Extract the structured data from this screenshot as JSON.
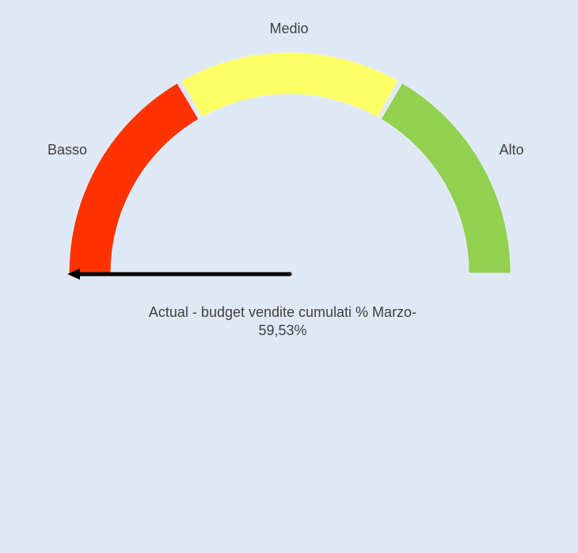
{
  "chart_data": {
    "type": "gauge",
    "bands": [
      {
        "label": "Basso",
        "color": "#ff3300"
      },
      {
        "label": "Medio",
        "color": "#ffff66"
      },
      {
        "label": "Alto",
        "color": "#92d050"
      }
    ],
    "value_percent": -59.53,
    "caption_line1": "Actual - budget vendite cumulati % Marzo-",
    "caption_line2": "59,53%"
  }
}
